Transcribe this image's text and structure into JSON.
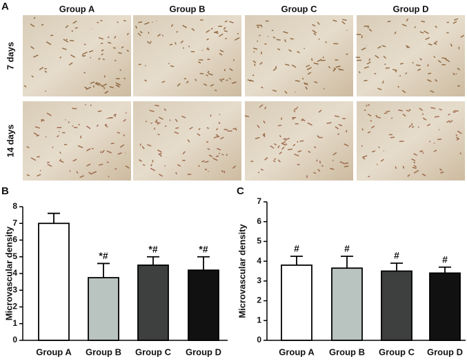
{
  "panels": {
    "images": "A",
    "chart_b": "B",
    "chart_c": "C"
  },
  "images": {
    "columns": [
      "Group A",
      "Group B",
      "Group C",
      "Group D"
    ],
    "rows": [
      "7 days",
      "14 days"
    ]
  },
  "chart_data": [
    {
      "type": "bar",
      "ylabel": "Microvascular density",
      "categories": [
        "Group A",
        "Group B",
        "Group C",
        "Group D"
      ],
      "values": [
        7.0,
        3.75,
        4.5,
        4.2
      ],
      "errors": [
        0.6,
        0.85,
        0.5,
        0.8
      ],
      "colors": [
        "#ffffff",
        "#b9c3bf",
        "#3e3f3f",
        "#111111"
      ],
      "annotations": [
        null,
        "*#",
        "*#",
        "*#"
      ],
      "ylim": [
        0,
        8
      ],
      "yticks": [
        0,
        1,
        2,
        3,
        4,
        5,
        6,
        7,
        8
      ]
    },
    {
      "type": "bar",
      "ylabel": "Microvascular density",
      "categories": [
        "Group A",
        "Group B",
        "Group C",
        "Group D"
      ],
      "values": [
        3.8,
        3.65,
        3.5,
        3.4
      ],
      "errors": [
        0.45,
        0.6,
        0.4,
        0.3
      ],
      "colors": [
        "#ffffff",
        "#b9c3bf",
        "#3e3f3f",
        "#111111"
      ],
      "annotations": [
        "#",
        "#",
        "#",
        "#"
      ],
      "ylim": [
        0,
        7
      ],
      "yticks": [
        0,
        1,
        2,
        3,
        4,
        5,
        6,
        7
      ]
    }
  ]
}
